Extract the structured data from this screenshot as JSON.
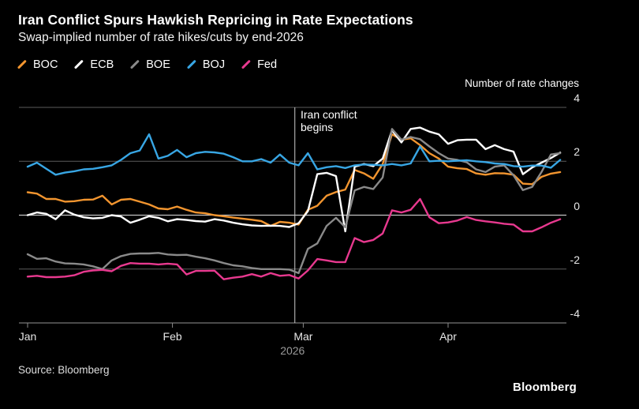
{
  "header": {
    "title": "Iran Conflict Spurs Hawkish Repricing in Rate Expectations",
    "subtitle": "Swap-implied number of rate hikes/cuts by end-2026"
  },
  "legend": [
    {
      "label": "BOC",
      "color": "#F2952F"
    },
    {
      "label": "ECB",
      "color": "#FFFFFF"
    },
    {
      "label": "BOE",
      "color": "#8A8A8A"
    },
    {
      "label": "BOJ",
      "color": "#38A6E4"
    },
    {
      "label": "Fed",
      "color": "#E8398F"
    }
  ],
  "footer": {
    "source": "Source: Bloomberg",
    "logo": "Bloomberg"
  },
  "colors": {
    "background": "#000000",
    "gridline": "#5c5c5c",
    "zero_line": "#c2c2c2",
    "axis_line": "#777777",
    "event_line": "#cccccc"
  },
  "chart_data": {
    "type": "line",
    "title": "Iran Conflict Spurs Hawkish Repricing in Rate Expectations",
    "subtitle": "Swap-implied number of rate hikes/cuts by end-2026",
    "ylabel": "Number of rate changes",
    "legend_position": "top-left",
    "grid": "horizontal",
    "x_axis": {
      "unit": "days since Jan 1 2026",
      "tick_days": [
        0,
        31,
        59,
        90
      ],
      "tick_labels": [
        "Jan",
        "Feb",
        "Mar",
        "Apr"
      ],
      "year_label": "2026",
      "year_label_day": 56.7,
      "range_days": [
        0,
        114
      ]
    },
    "y_axis": {
      "label": "Number of rate changes",
      "ticks": [
        "4",
        "2",
        "0",
        "-2",
        "-4"
      ],
      "tick_values": [
        4,
        2,
        0,
        -2,
        -4
      ],
      "range": [
        -4,
        4
      ]
    },
    "event_line": {
      "day": 57.2,
      "text_line1": "Iran conflict",
      "text_line2": "begins"
    },
    "x_start": 0,
    "x_step": 2,
    "series": [
      {
        "name": "BOC",
        "color": "#F2952F",
        "values": [
          0.85,
          0.8,
          0.6,
          0.6,
          0.5,
          0.52,
          0.57,
          0.58,
          0.72,
          0.4,
          0.57,
          0.6,
          0.5,
          0.4,
          0.25,
          0.22,
          0.32,
          0.2,
          0.1,
          0.07,
          0.0,
          -0.04,
          -0.09,
          -0.13,
          -0.17,
          -0.22,
          -0.4,
          -0.25,
          -0.28,
          -0.35,
          0.2,
          0.35,
          0.72,
          0.86,
          0.95,
          1.68,
          1.55,
          1.35,
          1.9,
          3.0,
          2.8,
          2.85,
          2.6,
          2.3,
          2.1,
          1.8,
          1.74,
          1.71,
          1.55,
          1.5,
          1.56,
          1.55,
          1.5,
          1.17,
          1.15,
          1.42,
          1.54,
          1.6
        ]
      },
      {
        "name": "ECB",
        "color": "#FFFFFF",
        "values": [
          0.0,
          0.1,
          0.05,
          -0.15,
          0.18,
          0.02,
          -0.08,
          -0.12,
          -0.1,
          0.0,
          -0.05,
          -0.28,
          -0.17,
          -0.04,
          -0.1,
          -0.23,
          -0.15,
          -0.18,
          -0.22,
          -0.24,
          -0.15,
          -0.2,
          -0.28,
          -0.34,
          -0.38,
          -0.4,
          -0.39,
          -0.4,
          -0.44,
          -0.3,
          0.15,
          1.52,
          1.57,
          1.45,
          -0.6,
          1.8,
          1.9,
          1.82,
          2.1,
          3.15,
          2.7,
          3.2,
          3.25,
          3.1,
          3.0,
          2.65,
          2.78,
          2.8,
          2.8,
          2.45,
          2.6,
          2.45,
          2.36,
          1.52,
          1.77,
          1.95,
          2.12,
          2.32
        ]
      },
      {
        "name": "BOE",
        "color": "#8A8A8A",
        "values": [
          -1.45,
          -1.62,
          -1.6,
          -1.72,
          -1.79,
          -1.8,
          -1.83,
          -1.9,
          -2.0,
          -1.68,
          -1.52,
          -1.44,
          -1.42,
          -1.42,
          -1.4,
          -1.46,
          -1.48,
          -1.47,
          -1.54,
          -1.6,
          -1.68,
          -1.78,
          -1.86,
          -1.9,
          -1.96,
          -2.0,
          -2.0,
          -2.0,
          -2.02,
          -2.15,
          -1.25,
          -1.05,
          -0.4,
          -0.1,
          -0.45,
          0.92,
          1.05,
          0.97,
          1.4,
          3.2,
          2.8,
          2.9,
          2.82,
          2.55,
          2.3,
          2.1,
          2.05,
          1.96,
          1.7,
          1.6,
          1.8,
          1.85,
          1.48,
          0.93,
          1.05,
          1.6,
          2.25,
          2.3
        ]
      },
      {
        "name": "BOJ",
        "color": "#38A6E4",
        "values": [
          1.8,
          1.95,
          1.72,
          1.5,
          1.58,
          1.63,
          1.7,
          1.72,
          1.78,
          1.85,
          2.05,
          2.3,
          2.4,
          3.0,
          2.1,
          2.2,
          2.42,
          2.15,
          2.3,
          2.35,
          2.33,
          2.28,
          2.15,
          2.0,
          2.0,
          2.08,
          1.95,
          2.25,
          1.95,
          1.85,
          2.3,
          1.7,
          1.78,
          1.82,
          1.75,
          1.85,
          1.88,
          1.87,
          1.85,
          1.9,
          1.85,
          1.92,
          2.55,
          2.0,
          2.02,
          2.0,
          2.02,
          2.04,
          2.0,
          1.97,
          1.92,
          1.9,
          1.82,
          1.8,
          1.84,
          1.84,
          1.76,
          2.05
        ]
      },
      {
        "name": "Fed",
        "color": "#E8398F",
        "values": [
          -2.28,
          -2.25,
          -2.3,
          -2.3,
          -2.28,
          -2.23,
          -2.1,
          -2.05,
          -2.03,
          -2.08,
          -1.88,
          -1.78,
          -1.8,
          -1.8,
          -1.83,
          -1.8,
          -1.83,
          -2.2,
          -2.07,
          -2.07,
          -2.06,
          -2.38,
          -2.32,
          -2.28,
          -2.19,
          -2.28,
          -2.15,
          -2.25,
          -2.22,
          -2.35,
          -2.05,
          -1.63,
          -1.68,
          -1.74,
          -1.74,
          -0.85,
          -1.0,
          -0.92,
          -0.68,
          0.18,
          0.1,
          0.2,
          0.6,
          -0.08,
          -0.3,
          -0.27,
          -0.2,
          -0.07,
          -0.18,
          -0.23,
          -0.27,
          -0.32,
          -0.35,
          -0.6,
          -0.6,
          -0.45,
          -0.28,
          -0.15
        ]
      }
    ]
  }
}
